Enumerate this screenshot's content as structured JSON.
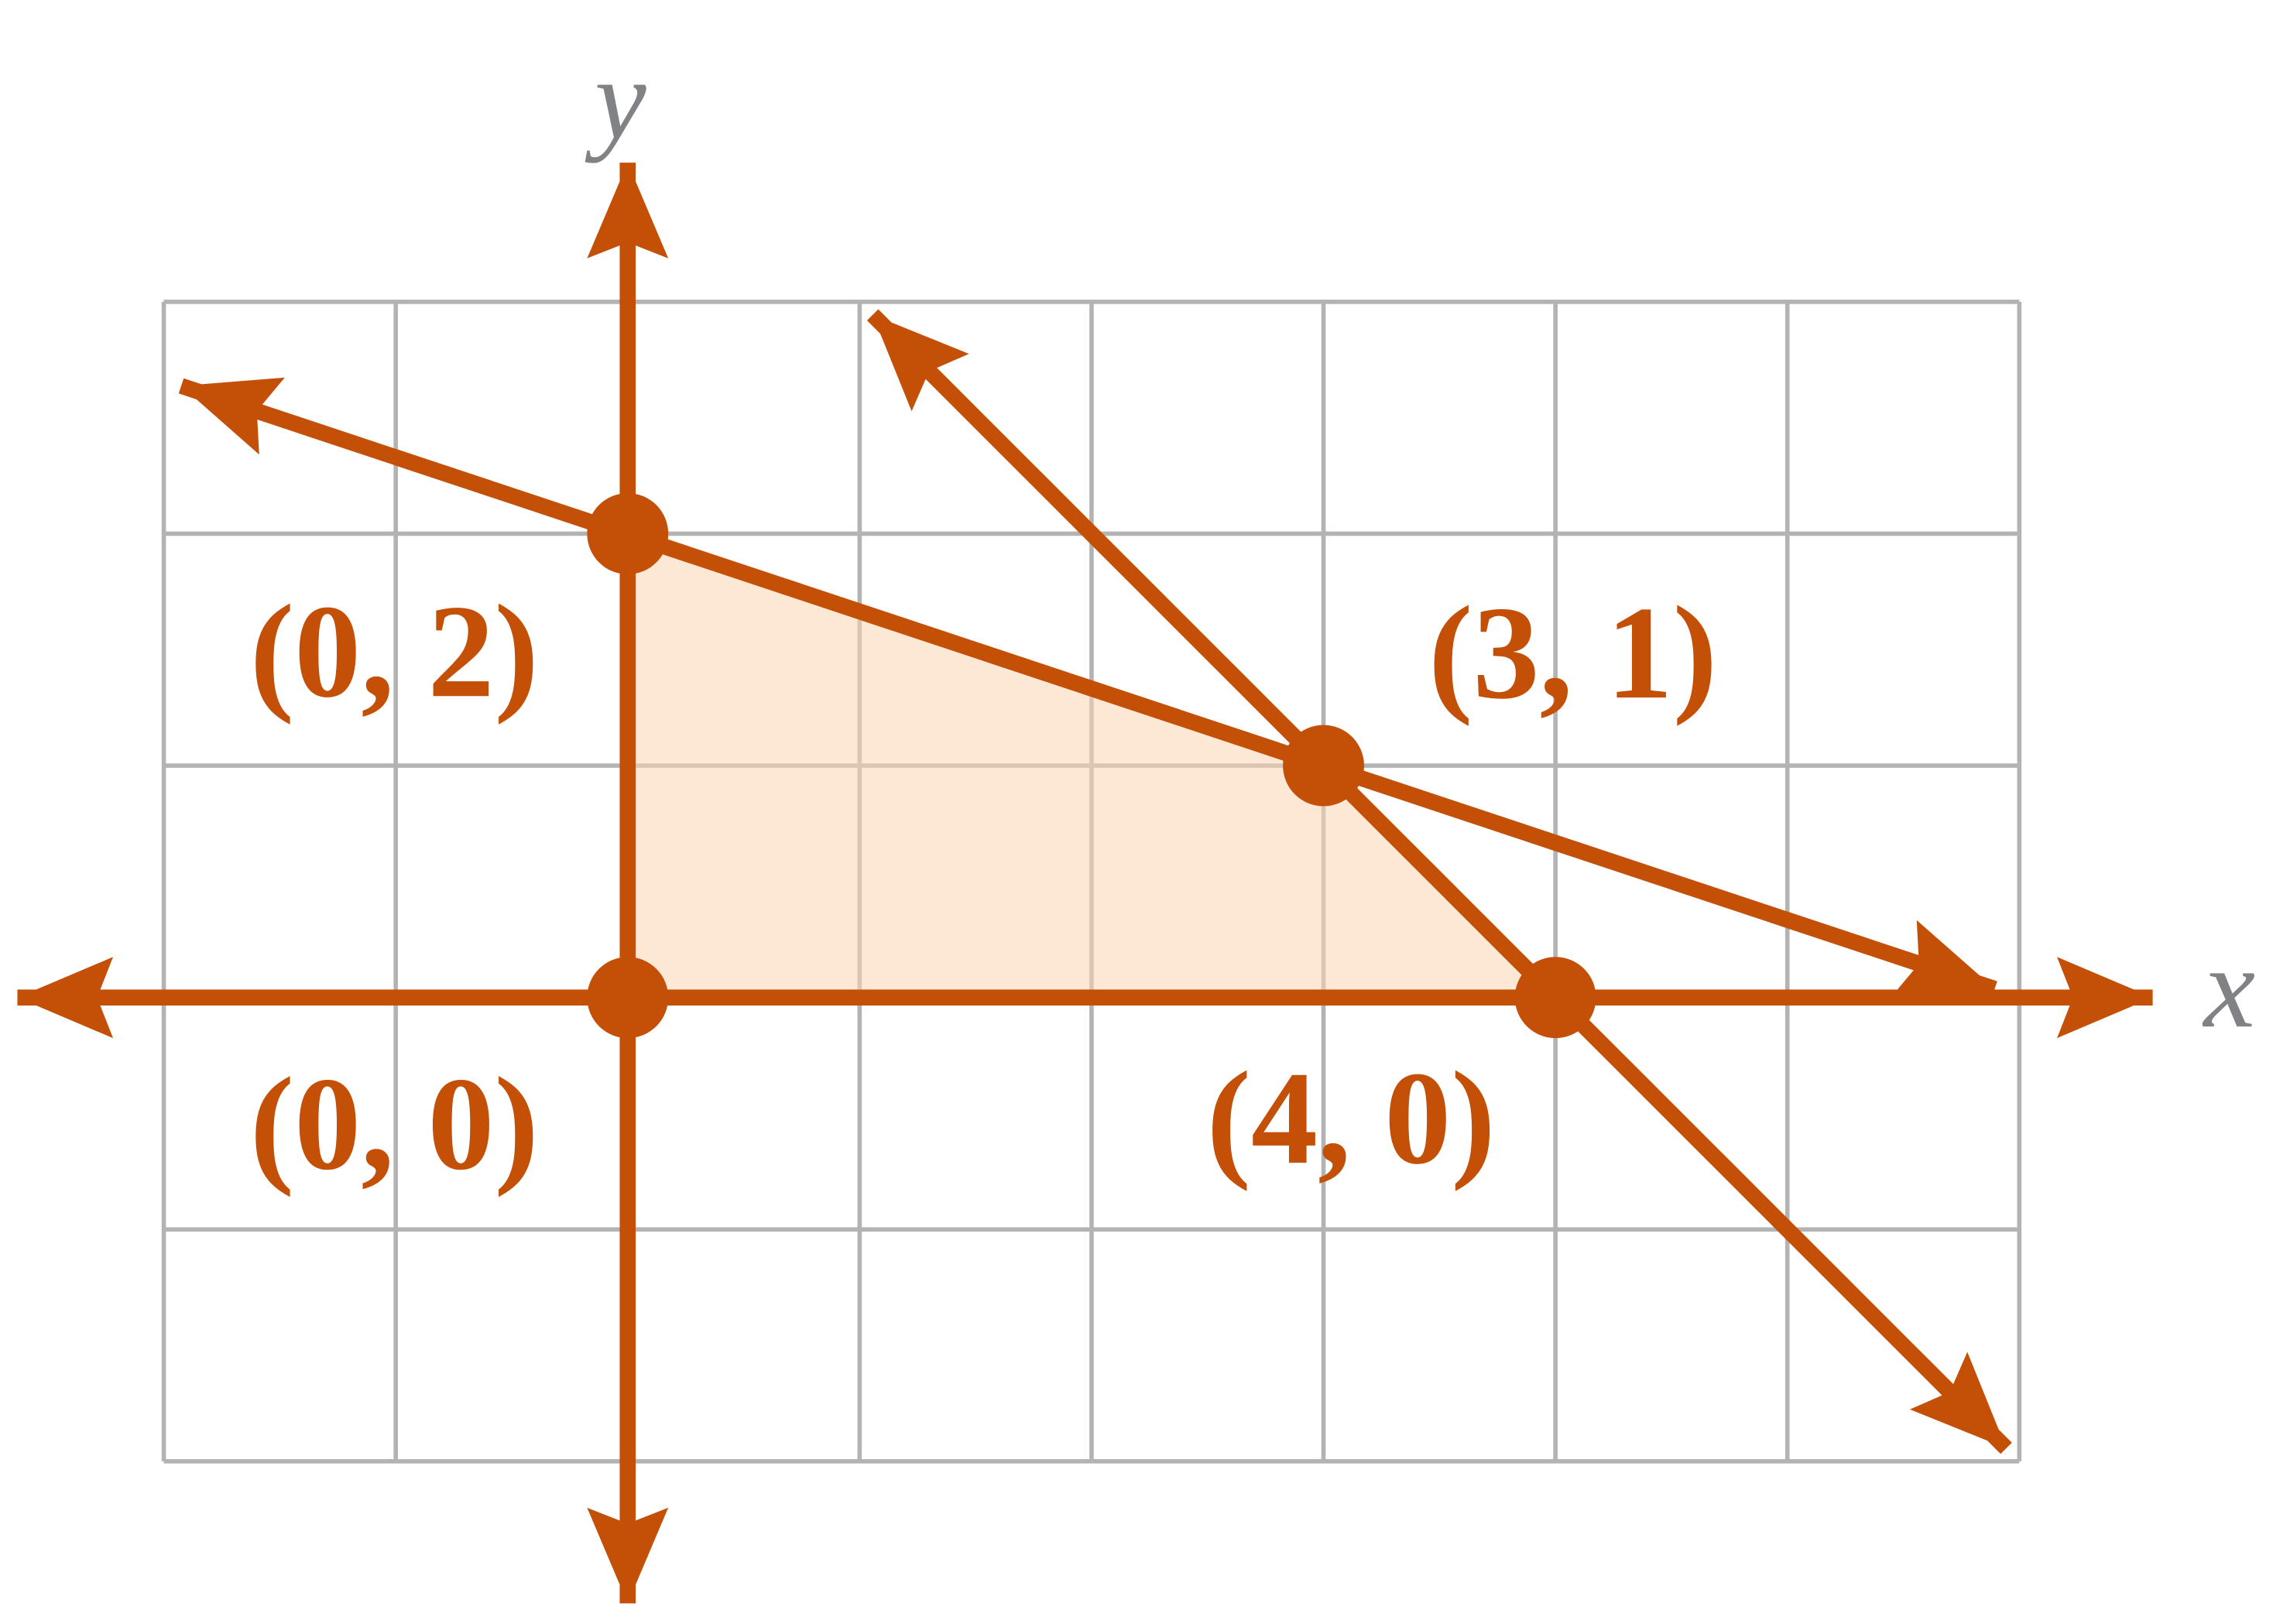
{
  "axes": {
    "x_label": "x",
    "y_label": "y"
  },
  "points": [
    {
      "label": "(0, 2)"
    },
    {
      "label": "(3, 1)"
    },
    {
      "label": "(0, 0)"
    },
    {
      "label": "(4, 0)"
    }
  ]
}
